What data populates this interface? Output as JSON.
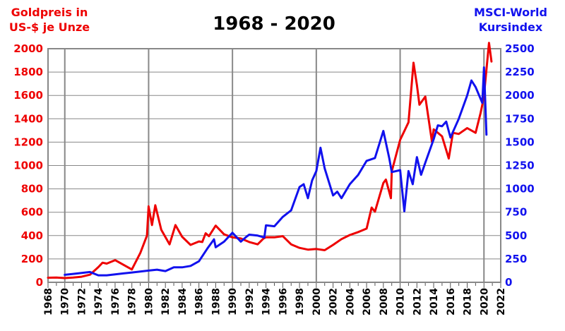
{
  "chart_data": {
    "type": "line",
    "title": "1968 - 2020",
    "left_axis_label_line1": "Goldpreis in",
    "left_axis_label_line2": "US-$ je Unze",
    "right_axis_label_line1": "MSCI-World",
    "right_axis_label_line2": "Kursindex",
    "x_ticks": [
      "1968",
      "1970",
      "1972",
      "1974",
      "1976",
      "1978",
      "1980",
      "1982",
      "1984",
      "1986",
      "1988",
      "1990",
      "1992",
      "1994",
      "1996",
      "1998",
      "2000",
      "2002",
      "2004",
      "2006",
      "2008",
      "2010",
      "2012",
      "2014",
      "2016",
      "2018",
      "2020",
      "2022"
    ],
    "xlim": [
      1968,
      2022
    ],
    "y_left_ticks": [
      "0",
      "200",
      "400",
      "600",
      "800",
      "1000",
      "1200",
      "1400",
      "1600",
      "1800",
      "2000"
    ],
    "y_left_lim": [
      0,
      2000
    ],
    "y_right_ticks": [
      "0",
      "250",
      "500",
      "750",
      "1000",
      "1250",
      "1500",
      "1750",
      "2000",
      "2250",
      "2500"
    ],
    "y_right_lim": [
      0,
      2500
    ],
    "colors": {
      "gold": "#ee0000",
      "msci": "#1111ee",
      "grid": "#888888",
      "frame": "#888888"
    },
    "series": [
      {
        "name": "Goldpreis in US-$ je Unze",
        "axis": "left",
        "color": "#ee0000",
        "x": [
          1968,
          1969,
          1970,
          1971,
          1972,
          1973,
          1973.5,
          1974,
          1974.5,
          1975,
          1976,
          1977,
          1978,
          1979,
          1979.8,
          1980.0,
          1980.4,
          1980.8,
          1981.5,
          1982.5,
          1983.2,
          1984,
          1985,
          1986,
          1986.4,
          1986.8,
          1987.2,
          1988,
          1989,
          1990,
          1991,
          1992,
          1993,
          1993.7,
          1994,
          1995,
          1996,
          1997,
          1998,
          1999,
          2000,
          2001,
          2002,
          2003,
          2004,
          2005,
          2006,
          2006.6,
          2007,
          2008,
          2008.3,
          2008.9,
          2009,
          2010,
          2011,
          2011.6,
          2012,
          2012.3,
          2013,
          2013.8,
          2014,
          2015,
          2015.8,
          2016.3,
          2017,
          2018,
          2019,
          2019.6,
          2019.8,
          2020,
          2020.6,
          2020.9
        ],
        "values": [
          39,
          41,
          36,
          41,
          48,
          65,
          97,
          130,
          168,
          160,
          190,
          150,
          110,
          250,
          400,
          650,
          490,
          660,
          450,
          325,
          490,
          390,
          320,
          350,
          345,
          420,
          395,
          485,
          410,
          385,
          375,
          345,
          325,
          375,
          385,
          385,
          395,
          325,
          295,
          280,
          285,
          275,
          320,
          370,
          405,
          430,
          460,
          640,
          605,
          850,
          880,
          720,
          950,
          1220,
          1370,
          1880,
          1690,
          1520,
          1590,
          1200,
          1310,
          1250,
          1060,
          1280,
          1270,
          1320,
          1280,
          1450,
          1520,
          1600,
          2050,
          1890
        ]
      },
      {
        "name": "MSCI-World Kursindex",
        "axis": "right",
        "color": "#1111ee",
        "x": [
          1970,
          1971,
          1972,
          1973,
          1974,
          1975,
          1976,
          1977,
          1978,
          1979,
          1980,
          1981,
          1982,
          1983,
          1984,
          1985,
          1986,
          1987,
          1987.8,
          1988,
          1989,
          1990,
          1991,
          1991.7,
          1992,
          1993,
          1993.8,
          1994,
          1995,
          1996,
          1997,
          1998,
          1998.5,
          1999,
          1999.5,
          2000,
          2000.5,
          2001,
          2002,
          2002.5,
          2003,
          2004,
          2005,
          2006,
          2007,
          2008,
          2008.7,
          2009,
          2010,
          2010.5,
          2011,
          2011.5,
          2012,
          2012.5,
          2013,
          2014,
          2014.5,
          2015,
          2015.5,
          2016,
          2017,
          2018,
          2018.5,
          2019,
          2019.8,
          2020,
          2020.3
        ],
        "values": [
          80,
          90,
          100,
          110,
          75,
          75,
          85,
          95,
          105,
          115,
          125,
          135,
          120,
          160,
          160,
          175,
          225,
          360,
          460,
          375,
          435,
          530,
          435,
          490,
          510,
          500,
          480,
          610,
          600,
          700,
          770,
          1020,
          1050,
          900,
          1090,
          1190,
          1440,
          1220,
          930,
          970,
          900,
          1050,
          1150,
          1300,
          1330,
          1620,
          1330,
          1180,
          1200,
          760,
          1190,
          1050,
          1340,
          1150,
          1280,
          1530,
          1680,
          1670,
          1720,
          1550,
          1750,
          2000,
          2160,
          2090,
          1920,
          2300,
          1580
        ]
      }
    ]
  }
}
